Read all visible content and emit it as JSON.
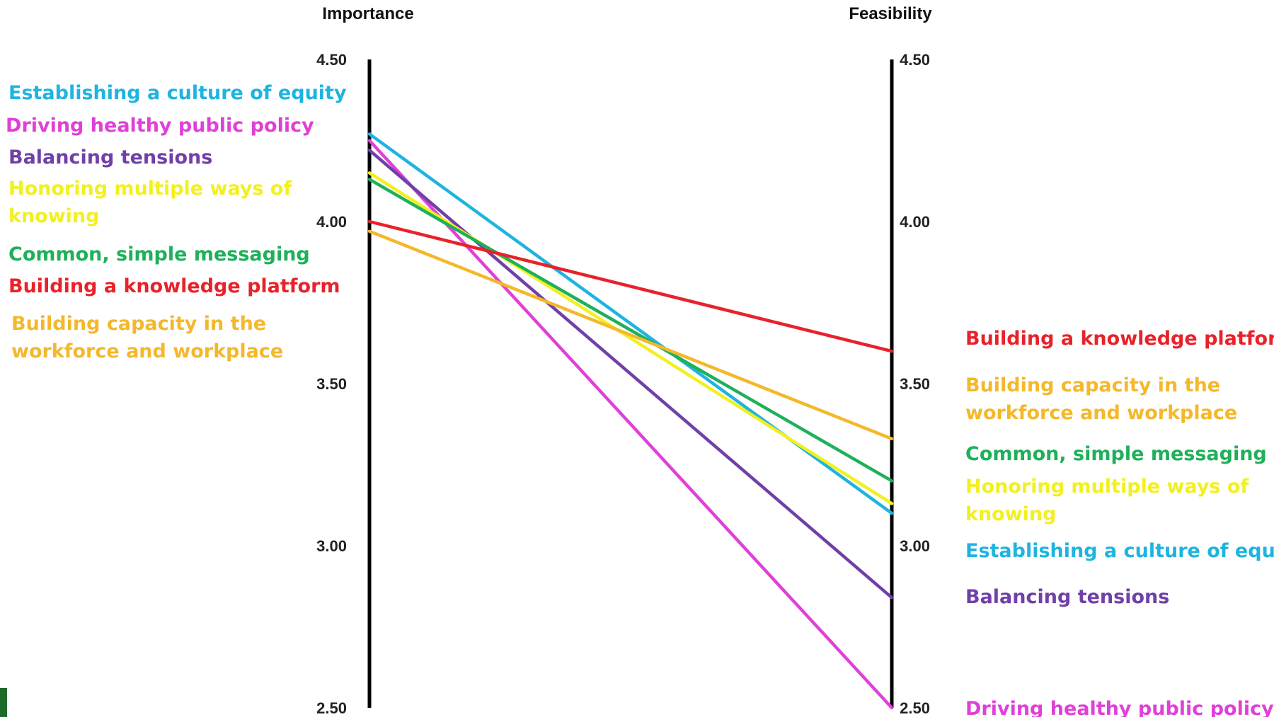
{
  "chart_data": {
    "type": "line",
    "title": "",
    "axes": [
      "Importance",
      "Feasibility"
    ],
    "ylim": [
      2.5,
      4.5
    ],
    "ticks": [
      "4.50",
      "4.00",
      "3.50",
      "3.00",
      "2.50"
    ],
    "tick_values": [
      4.5,
      4.0,
      3.5,
      3.0,
      2.5
    ],
    "grid": false,
    "series": [
      {
        "name": "Establishing a culture of equity",
        "color": "#1fb4e0",
        "values": [
          4.27,
          3.1
        ],
        "left_label": [
          "Establishing a culture of equity"
        ],
        "right_label": [
          "Establishing a culture of equity"
        ]
      },
      {
        "name": "Driving healthy public policy",
        "color": "#e040d8",
        "values": [
          4.25,
          2.5
        ],
        "left_label": [
          "Driving healthy public policy"
        ],
        "right_label": [
          "Driving healthy public policy"
        ]
      },
      {
        "name": "Balancing tensions",
        "color": "#7040a8",
        "values": [
          4.22,
          2.84
        ],
        "left_label": [
          "Balancing tensions"
        ],
        "right_label": [
          "Balancing tensions"
        ]
      },
      {
        "name": "Honoring multiple ways of knowing",
        "color": "#f2f020",
        "values": [
          4.15,
          3.13
        ],
        "left_label": [
          "Honoring multiple ways of",
          "knowing"
        ],
        "right_label": [
          "Honoring multiple ways of",
          "knowing"
        ]
      },
      {
        "name": "Common, simple messaging",
        "color": "#1fb05a",
        "values": [
          4.13,
          3.2
        ],
        "left_label": [
          "Common, simple messaging"
        ],
        "right_label": [
          "Common, simple messaging"
        ]
      },
      {
        "name": "Building a knowledge platform",
        "color": "#e8222a",
        "values": [
          4.0,
          3.6
        ],
        "left_label": [
          "Building a knowledge platform"
        ],
        "right_label": [
          "Building a knowledge platform"
        ]
      },
      {
        "name": "Building capacity in the workforce and workplace",
        "color": "#f4b82a",
        "values": [
          3.97,
          3.33
        ],
        "left_label": [
          "Building capacity in the",
          "workforce and workplace"
        ],
        "right_label": [
          "Building capacity in the",
          "workforce and workplace"
        ]
      }
    ]
  }
}
